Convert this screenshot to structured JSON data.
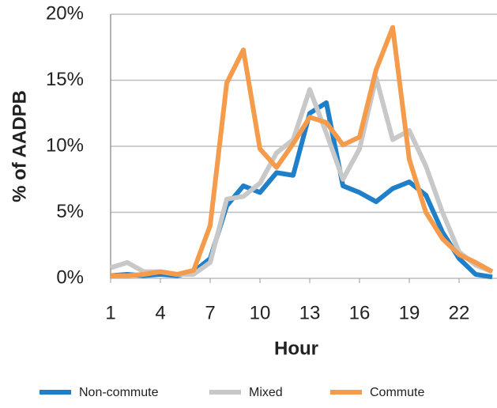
{
  "chart_data": {
    "type": "line",
    "x_label": "Hour",
    "y_label": "% of AADPB",
    "x": [
      1,
      2,
      3,
      4,
      5,
      6,
      7,
      8,
      9,
      10,
      11,
      12,
      13,
      14,
      15,
      16,
      17,
      18,
      19,
      20,
      21,
      22,
      23,
      24
    ],
    "xlim": [
      1,
      24
    ],
    "xticks": [
      1,
      4,
      7,
      10,
      13,
      16,
      19,
      22
    ],
    "ylim": [
      0,
      20
    ],
    "yticks": [
      {
        "value": 0,
        "label": "0%"
      },
      {
        "value": 5,
        "label": "5%"
      },
      {
        "value": 10,
        "label": "10%"
      },
      {
        "value": 15,
        "label": "15%"
      },
      {
        "value": 20,
        "label": "20%"
      }
    ],
    "grid": true,
    "legend": "bottom",
    "series": [
      {
        "name": "Non-commute",
        "color": "#1f7fc8",
        "values": [
          0.2,
          0.3,
          0.2,
          0.3,
          0.2,
          0.5,
          1.5,
          5.5,
          7,
          6.5,
          8,
          7.8,
          12.5,
          13.3,
          7,
          6.5,
          5.8,
          6.8,
          7.3,
          6.3,
          3.5,
          1.5,
          0.3,
          0.1
        ]
      },
      {
        "name": "Mixed",
        "color": "#c8c8c8",
        "values": [
          0.8,
          1.2,
          0.5,
          0.5,
          0.3,
          0.3,
          1.2,
          6,
          6.2,
          7.2,
          9.5,
          10.5,
          14.3,
          11,
          7.5,
          9.8,
          15.2,
          10.5,
          11.2,
          8.5,
          5,
          2,
          1,
          0.5
        ]
      },
      {
        "name": "Commute",
        "color": "#f59b4c",
        "values": [
          0.2,
          0.2,
          0.3,
          0.5,
          0.3,
          0.6,
          4,
          14.8,
          17.3,
          9.8,
          8.4,
          10.2,
          12.2,
          11.8,
          10.1,
          10.7,
          15.8,
          19,
          9,
          5,
          3,
          1.8,
          1.2,
          0.5
        ]
      }
    ]
  }
}
